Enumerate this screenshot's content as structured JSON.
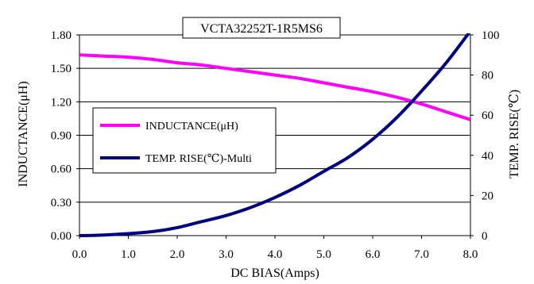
{
  "chart_data": {
    "type": "line",
    "title": "VCTA32252T-1R5MS6",
    "xlabel": "DC BIAS(Amps)",
    "ylabel_left": "INDUCTANCE(μH)",
    "ylabel_right": "TEMP. RISE(℃)",
    "xlim": [
      0,
      8
    ],
    "ylim_left": [
      0,
      1.8
    ],
    "ylim_right": [
      0,
      100
    ],
    "x_ticks": [
      "0.0",
      "1.0",
      "2.0",
      "3.0",
      "4.0",
      "5.0",
      "6.0",
      "7.0",
      "8.0"
    ],
    "y_left_ticks": [
      "0.00",
      "0.30",
      "0.60",
      "0.90",
      "1.20",
      "1.50",
      "1.80"
    ],
    "y_right_ticks": [
      "0",
      "20",
      "40",
      "60",
      "80",
      "100"
    ],
    "grid": "horizontal",
    "legend_position": "middle-left",
    "series": [
      {
        "name": "INDUCTANCE(μH)",
        "axis": "left",
        "color": "#ff00ff",
        "x": [
          0,
          0.5,
          1,
          1.5,
          2,
          2.5,
          3,
          3.5,
          4,
          4.5,
          5,
          5.5,
          6,
          6.5,
          7,
          7.5,
          8
        ],
        "values": [
          1.62,
          1.61,
          1.6,
          1.58,
          1.55,
          1.53,
          1.5,
          1.47,
          1.44,
          1.41,
          1.37,
          1.33,
          1.29,
          1.24,
          1.18,
          1.11,
          1.04
        ]
      },
      {
        "name": "TEMP. RISE(℃)-Multi",
        "axis": "right",
        "color": "#000080",
        "x": [
          0,
          0.5,
          1,
          1.5,
          2,
          2.5,
          3,
          3.5,
          4,
          4.5,
          5,
          5.5,
          6,
          6.5,
          7,
          7.5,
          8
        ],
        "values": [
          0,
          0.3,
          1,
          2,
          4,
          7,
          10,
          14,
          19,
          25,
          32,
          39,
          48,
          59,
          72,
          86,
          102
        ]
      }
    ]
  }
}
